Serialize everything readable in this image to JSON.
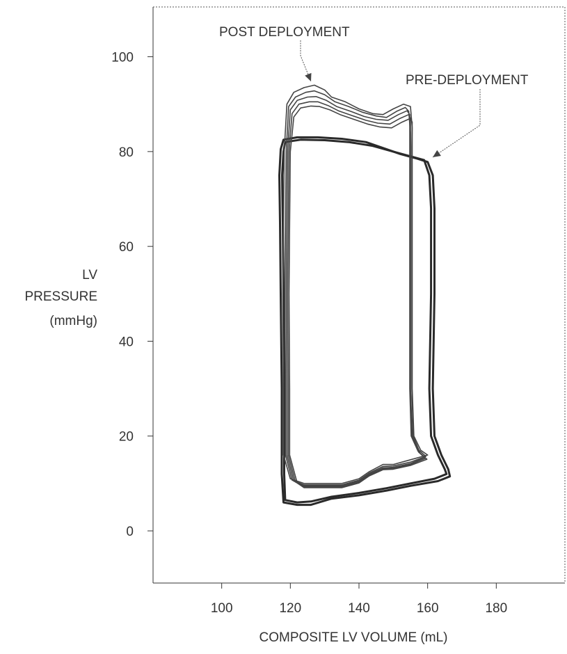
{
  "chart_data": {
    "type": "line",
    "xlabel": "COMPOSITE LV VOLUME (mL)",
    "ylabel": [
      "LV",
      "PRESSURE",
      "(mmHg)"
    ],
    "xlim": [
      80,
      200
    ],
    "ylim": [
      -11,
      110.5
    ],
    "xticks": [
      100,
      120,
      140,
      160,
      180
    ],
    "yticks": [
      0,
      20,
      40,
      60,
      80,
      100
    ],
    "grid": false,
    "annotations": [
      {
        "text": "POST DEPLOYMENT",
        "target": [
          127,
          94
        ]
      },
      {
        "text": "PRE-DEPLOYMENT",
        "target": [
          161,
          78
        ]
      }
    ],
    "series": [
      {
        "id": "pre",
        "loops": [
          [
            [
              118,
              82.5
            ],
            [
              122,
              83
            ],
            [
              128,
              83
            ],
            [
              135,
              82.7
            ],
            [
              142,
              82
            ],
            [
              148,
              80.5
            ],
            [
              152,
              79.5
            ],
            [
              157,
              78.5
            ],
            [
              160,
              77.8
            ],
            [
              161.5,
              75
            ],
            [
              162,
              68
            ],
            [
              162,
              50
            ],
            [
              161.5,
              30
            ],
            [
              162,
              20
            ],
            [
              164,
              16
            ],
            [
              166,
              13
            ],
            [
              166.5,
              11.5
            ],
            [
              163,
              10.5
            ],
            [
              155,
              9.5
            ],
            [
              148,
              8.5
            ],
            [
              140,
              7.5
            ],
            [
              132,
              6.8
            ],
            [
              126,
              5.5
            ],
            [
              122,
              5.5
            ],
            [
              118,
              6
            ],
            [
              117.5,
              12
            ],
            [
              117.5,
              30
            ],
            [
              117.2,
              50
            ],
            [
              117,
              65
            ],
            [
              116.8,
              75
            ],
            [
              117.2,
              80.5
            ],
            [
              118,
              82.5
            ]
          ],
          [
            [
              118.5,
              82
            ],
            [
              123,
              82.5
            ],
            [
              130,
              82.4
            ],
            [
              137,
              82
            ],
            [
              144,
              81.2
            ],
            [
              150,
              80
            ],
            [
              155,
              79
            ],
            [
              159,
              78.2
            ],
            [
              160.5,
              75
            ],
            [
              161,
              68
            ],
            [
              161,
              50
            ],
            [
              160.5,
              30
            ],
            [
              161,
              20
            ],
            [
              163,
              16
            ],
            [
              165,
              13
            ],
            [
              165.5,
              12
            ],
            [
              162,
              11
            ],
            [
              155,
              10
            ],
            [
              148,
              9
            ],
            [
              140,
              8
            ],
            [
              132,
              7.2
            ],
            [
              126,
              6.2
            ],
            [
              122,
              6
            ],
            [
              118.5,
              6.5
            ],
            [
              118.2,
              12
            ],
            [
              118.2,
              30
            ],
            [
              118,
              50
            ],
            [
              117.8,
              65
            ],
            [
              117.6,
              75
            ],
            [
              118,
              80
            ],
            [
              118.5,
              82
            ]
          ]
        ]
      },
      {
        "id": "post",
        "loops": [
          [
            [
              119,
              90
            ],
            [
              121,
              92.5
            ],
            [
              124,
              93.5
            ],
            [
              127,
              94
            ],
            [
              130,
              93
            ],
            [
              132,
              91.5
            ],
            [
              136,
              90.5
            ],
            [
              140,
              89
            ],
            [
              144,
              88
            ],
            [
              147,
              87.8
            ],
            [
              150,
              89
            ],
            [
              153,
              90
            ],
            [
              155,
              89.5
            ],
            [
              155.5,
              85
            ],
            [
              155.5,
              70
            ],
            [
              155.5,
              50
            ],
            [
              155.5,
              30
            ],
            [
              156,
              20
            ],
            [
              158,
              17
            ],
            [
              160,
              16
            ],
            [
              155,
              15
            ],
            [
              150,
              14
            ],
            [
              147,
              14
            ],
            [
              143,
              12.5
            ],
            [
              140,
              11
            ],
            [
              135,
              10
            ],
            [
              128,
              10
            ],
            [
              124,
              10
            ],
            [
              120,
              11
            ],
            [
              118,
              16
            ],
            [
              118,
              30
            ],
            [
              117.8,
              50
            ],
            [
              118,
              65
            ],
            [
              118.2,
              80
            ],
            [
              119,
              90
            ]
          ],
          [
            [
              119.5,
              89.5
            ],
            [
              121.5,
              91.5
            ],
            [
              124.5,
              92.5
            ],
            [
              127,
              92.8
            ],
            [
              130,
              92
            ],
            [
              133,
              90.5
            ],
            [
              137,
              89.5
            ],
            [
              141,
              88.3
            ],
            [
              145,
              87.5
            ],
            [
              148,
              87.2
            ],
            [
              151,
              88.5
            ],
            [
              153.5,
              89.3
            ],
            [
              154.5,
              88.5
            ],
            [
              155,
              84
            ],
            [
              155,
              70
            ],
            [
              155,
              50
            ],
            [
              155,
              30
            ],
            [
              155.5,
              20
            ],
            [
              157.5,
              17
            ],
            [
              159.5,
              15.7
            ],
            [
              155,
              14.5
            ],
            [
              150,
              13.7
            ],
            [
              147,
              13.6
            ],
            [
              143,
              12.2
            ],
            [
              140,
              10.7
            ],
            [
              135,
              9.7
            ],
            [
              128,
              9.7
            ],
            [
              124,
              9.7
            ],
            [
              120.5,
              10.7
            ],
            [
              118.6,
              16
            ],
            [
              118.6,
              30
            ],
            [
              118.4,
              50
            ],
            [
              118.6,
              65
            ],
            [
              118.8,
              80
            ],
            [
              119.5,
              89.5
            ]
          ],
          [
            [
              120,
              88.8
            ],
            [
              122,
              90.8
            ],
            [
              125,
              91.5
            ],
            [
              127.5,
              91.6
            ],
            [
              130.5,
              90.8
            ],
            [
              133.5,
              89.5
            ],
            [
              137.5,
              88.5
            ],
            [
              141.5,
              87.4
            ],
            [
              145,
              86.8
            ],
            [
              148.5,
              86.6
            ],
            [
              151.5,
              87.8
            ],
            [
              154,
              88.6
            ],
            [
              154.8,
              87.8
            ],
            [
              154.8,
              83
            ],
            [
              154.8,
              70
            ],
            [
              154.8,
              50
            ],
            [
              154.8,
              30
            ],
            [
              155.2,
              20
            ],
            [
              157.2,
              16.8
            ],
            [
              159.2,
              15.5
            ],
            [
              155,
              14.2
            ],
            [
              150,
              13.4
            ],
            [
              147,
              13.3
            ],
            [
              143,
              12
            ],
            [
              140,
              10.5
            ],
            [
              135,
              9.5
            ],
            [
              128,
              9.5
            ],
            [
              124,
              9.5
            ],
            [
              121,
              10.5
            ],
            [
              119,
              16
            ],
            [
              119,
              30
            ],
            [
              118.8,
              50
            ],
            [
              119,
              65
            ],
            [
              119.2,
              80
            ],
            [
              120,
              88.8
            ]
          ],
          [
            [
              120.5,
              88
            ],
            [
              122.5,
              90
            ],
            [
              125.5,
              90.5
            ],
            [
              128,
              90.5
            ],
            [
              131,
              89.7
            ],
            [
              134,
              88.6
            ],
            [
              138,
              87.6
            ],
            [
              142,
              86.6
            ],
            [
              145.5,
              86
            ],
            [
              149,
              85.8
            ],
            [
              152,
              87
            ],
            [
              154.5,
              87.8
            ],
            [
              155,
              87
            ],
            [
              155,
              82
            ],
            [
              155,
              70
            ],
            [
              155,
              50
            ],
            [
              155,
              30
            ],
            [
              155.4,
              20
            ],
            [
              157.4,
              16.6
            ],
            [
              159.4,
              15.3
            ],
            [
              155,
              14
            ],
            [
              150,
              13.2
            ],
            [
              147,
              13.1
            ],
            [
              143,
              11.8
            ],
            [
              140,
              10.3
            ],
            [
              135,
              9.3
            ],
            [
              128,
              9.3
            ],
            [
              124,
              9.3
            ],
            [
              121.5,
              10.3
            ],
            [
              119.4,
              16
            ],
            [
              119.4,
              30
            ],
            [
              119.2,
              50
            ],
            [
              119.4,
              65
            ],
            [
              119.6,
              80
            ],
            [
              120.5,
              88
            ]
          ],
          [
            [
              121,
              87.3
            ],
            [
              123,
              89.2
            ],
            [
              126,
              89.6
            ],
            [
              128.5,
              89.5
            ],
            [
              131.5,
              88.8
            ],
            [
              134.5,
              87.8
            ],
            [
              138.5,
              86.8
            ],
            [
              142.5,
              85.8
            ],
            [
              146,
              85.2
            ],
            [
              149.5,
              85
            ],
            [
              152.5,
              86.2
            ],
            [
              155,
              87
            ],
            [
              155.5,
              86.2
            ],
            [
              155.4,
              81
            ],
            [
              155.4,
              70
            ],
            [
              155.4,
              50
            ],
            [
              155.4,
              30
            ],
            [
              155.8,
              20
            ],
            [
              157.8,
              16.4
            ],
            [
              159.8,
              15.1
            ],
            [
              155,
              13.8
            ],
            [
              150,
              13
            ],
            [
              147,
              12.9
            ],
            [
              143,
              11.6
            ],
            [
              140,
              10.1
            ],
            [
              135,
              9.1
            ],
            [
              128,
              9.1
            ],
            [
              124,
              9.1
            ],
            [
              122,
              10.1
            ],
            [
              119.8,
              16
            ],
            [
              119.8,
              30
            ],
            [
              119.6,
              50
            ],
            [
              119.8,
              65
            ],
            [
              120,
              80
            ],
            [
              121,
              87.3
            ]
          ]
        ]
      }
    ]
  }
}
